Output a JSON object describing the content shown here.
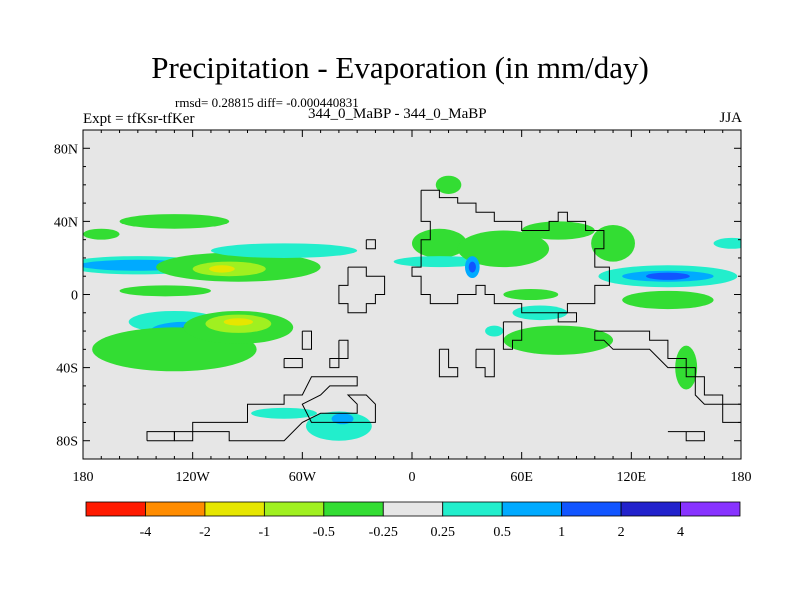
{
  "chart_data": {
    "type": "heatmap",
    "title": "Precipitation - Evaporation (in mm/day)",
    "stats_text": "rmsd= 0.28815 diff= -0.000440831",
    "left_label": "Expt = tfKsr-tfKer",
    "center_label": "344_0_MaBP - 344_0_MaBP",
    "right_label": "JJA",
    "x_ticks": [
      "180",
      "120W",
      "60W",
      "0",
      "60E",
      "120E",
      "180"
    ],
    "x_tick_values": [
      -180,
      -120,
      -60,
      0,
      60,
      120,
      180
    ],
    "y_ticks": [
      "80N",
      "40N",
      "0",
      "40S",
      "80S"
    ],
    "y_tick_values": [
      80,
      40,
      0,
      -40,
      -80
    ],
    "xlim": [
      -180,
      180
    ],
    "ylim": [
      -90,
      90
    ],
    "colorbar": {
      "colors": [
        "#ff1a00",
        "#ff8c00",
        "#e6e600",
        "#a0f020",
        "#33dd33",
        "#e6e6e6",
        "#22eecc",
        "#00aaff",
        "#1155ff",
        "#2222cc",
        "#8833ff"
      ],
      "labels": [
        "-4",
        "-2",
        "-1",
        "-0.5",
        "-0.25",
        "0.25",
        "0.5",
        "1",
        "2",
        "4"
      ]
    },
    "regions": [
      {
        "level": "0.25",
        "color": "#22eecc",
        "lon": -150,
        "lat": 16,
        "rlon": 40,
        "rlat": 5
      },
      {
        "level": "0.5",
        "color": "#00aaff",
        "lon": -150,
        "lat": 16,
        "rlon": 32,
        "rlat": 3
      },
      {
        "level": "-0.25",
        "color": "#33dd33",
        "lon": -130,
        "lat": 40,
        "rlon": 30,
        "rlat": 4
      },
      {
        "level": "-0.25",
        "color": "#33dd33",
        "lon": -95,
        "lat": 15,
        "rlon": 45,
        "rlat": 8
      },
      {
        "level": "-0.5",
        "color": "#a0f020",
        "lon": -100,
        "lat": 14,
        "rlon": 20,
        "rlat": 4
      },
      {
        "level": "-1",
        "color": "#e6e600",
        "lon": -104,
        "lat": 14,
        "rlon": 7,
        "rlat": 2
      },
      {
        "level": "0.25",
        "color": "#22eecc",
        "lon": -70,
        "lat": 24,
        "rlon": 40,
        "rlat": 4
      },
      {
        "level": "0.25",
        "color": "#22eecc",
        "lon": -130,
        "lat": -15,
        "rlon": 25,
        "rlat": 6
      },
      {
        "level": "0.5",
        "color": "#00aaff",
        "lon": -125,
        "lat": -20,
        "rlon": 18,
        "rlat": 5
      },
      {
        "level": "1",
        "color": "#1155ff",
        "lon": -120,
        "lat": -20,
        "rlon": 8,
        "rlat": 3
      },
      {
        "level": "-0.25",
        "color": "#33dd33",
        "lon": -130,
        "lat": -30,
        "rlon": 45,
        "rlat": 12
      },
      {
        "level": "-0.25",
        "color": "#33dd33",
        "lon": -95,
        "lat": -18,
        "rlon": 30,
        "rlat": 9
      },
      {
        "level": "-0.5",
        "color": "#a0f020",
        "lon": -95,
        "lat": -16,
        "rlon": 18,
        "rlat": 5
      },
      {
        "level": "-1",
        "color": "#e6e600",
        "lon": -95,
        "lat": -15,
        "rlon": 8,
        "rlat": 2
      },
      {
        "level": "-0.25",
        "color": "#33dd33",
        "lon": -135,
        "lat": 2,
        "rlon": 25,
        "rlat": 3
      },
      {
        "level": "0.25",
        "color": "#22eecc",
        "lon": -70,
        "lat": -65,
        "rlon": 18,
        "rlat": 3
      },
      {
        "level": "0.25",
        "color": "#22eecc",
        "lon": -40,
        "lat": -72,
        "rlon": 18,
        "rlat": 8
      },
      {
        "level": "0.5",
        "color": "#00aaff",
        "lon": -38,
        "lat": -68,
        "rlon": 6,
        "rlat": 3
      },
      {
        "level": "-0.25",
        "color": "#33dd33",
        "lon": 20,
        "lat": 60,
        "rlon": 7,
        "rlat": 5
      },
      {
        "level": "-0.25",
        "color": "#33dd33",
        "lon": 15,
        "lat": 28,
        "rlon": 15,
        "rlat": 8
      },
      {
        "level": "0.25",
        "color": "#22eecc",
        "lon": 15,
        "lat": 18,
        "rlon": 25,
        "rlat": 3
      },
      {
        "level": "-0.25",
        "color": "#33dd33",
        "lon": 50,
        "lat": 25,
        "rlon": 25,
        "rlat": 10
      },
      {
        "level": "0.5",
        "color": "#00aaff",
        "lon": 33,
        "lat": 15,
        "rlon": 4,
        "rlat": 6
      },
      {
        "level": "1",
        "color": "#1155ff",
        "lon": 33,
        "lat": 15,
        "rlon": 2,
        "rlat": 3
      },
      {
        "level": "-0.25",
        "color": "#33dd33",
        "lon": 80,
        "lat": 35,
        "rlon": 20,
        "rlat": 5
      },
      {
        "level": "-0.25",
        "color": "#33dd33",
        "lon": 110,
        "lat": 28,
        "rlon": 12,
        "rlat": 10
      },
      {
        "level": "0.25",
        "color": "#22eecc",
        "lon": 140,
        "lat": 10,
        "rlon": 38,
        "rlat": 6
      },
      {
        "level": "0.5",
        "color": "#00aaff",
        "lon": 140,
        "lat": 10,
        "rlon": 25,
        "rlat": 3
      },
      {
        "level": "1",
        "color": "#1155ff",
        "lon": 140,
        "lat": 10,
        "rlon": 12,
        "rlat": 2
      },
      {
        "level": "-0.25",
        "color": "#33dd33",
        "lon": 140,
        "lat": -3,
        "rlon": 25,
        "rlat": 5
      },
      {
        "level": "-0.25",
        "color": "#33dd33",
        "lon": 80,
        "lat": -25,
        "rlon": 30,
        "rlat": 8
      },
      {
        "level": "0.25",
        "color": "#22eecc",
        "lon": 70,
        "lat": -10,
        "rlon": 15,
        "rlat": 4
      },
      {
        "level": "-0.25",
        "color": "#33dd33",
        "lon": 150,
        "lat": -40,
        "rlon": 6,
        "rlat": 12
      },
      {
        "level": "0.25",
        "color": "#22eecc",
        "lon": 175,
        "lat": 28,
        "rlon": 10,
        "rlat": 3
      },
      {
        "level": "-0.25",
        "color": "#33dd33",
        "lon": -170,
        "lat": 33,
        "rlon": 10,
        "rlat": 3
      },
      {
        "level": "0.25",
        "color": "#22eecc",
        "lon": 45,
        "lat": -20,
        "rlon": 5,
        "rlat": 3
      },
      {
        "level": "-0.25",
        "color": "#33dd33",
        "lon": 65,
        "lat": 0,
        "rlon": 15,
        "rlat": 3
      }
    ],
    "coastlines": [
      [
        [
          5,
          57
        ],
        [
          15,
          57
        ],
        [
          15,
          53
        ],
        [
          25,
          53
        ],
        [
          25,
          50
        ],
        [
          35,
          50
        ],
        [
          35,
          45
        ],
        [
          45,
          45
        ],
        [
          45,
          40
        ],
        [
          60,
          40
        ],
        [
          60,
          35
        ],
        [
          75,
          35
        ],
        [
          75,
          40
        ],
        [
          80,
          40
        ],
        [
          80,
          45
        ],
        [
          85,
          45
        ],
        [
          85,
          40
        ],
        [
          95,
          40
        ],
        [
          95,
          35
        ],
        [
          105,
          35
        ],
        [
          105,
          25
        ],
        [
          100,
          25
        ],
        [
          100,
          15
        ],
        [
          108,
          15
        ],
        [
          108,
          5
        ],
        [
          100,
          5
        ],
        [
          100,
          -5
        ],
        [
          85,
          -5
        ],
        [
          85,
          -10
        ],
        [
          60,
          -10
        ],
        [
          60,
          -5
        ],
        [
          45,
          -5
        ],
        [
          45,
          0
        ],
        [
          40,
          0
        ],
        [
          40,
          5
        ],
        [
          35,
          5
        ],
        [
          35,
          0
        ],
        [
          25,
          0
        ],
        [
          25,
          -5
        ],
        [
          10,
          -5
        ],
        [
          10,
          0
        ],
        [
          5,
          0
        ],
        [
          5,
          10
        ],
        [
          0,
          10
        ],
        [
          0,
          15
        ],
        [
          5,
          15
        ],
        [
          5,
          30
        ],
        [
          10,
          30
        ],
        [
          10,
          40
        ],
        [
          5,
          40
        ],
        [
          5,
          57
        ]
      ],
      [
        [
          -35,
          15
        ],
        [
          -25,
          15
        ],
        [
          -25,
          10
        ],
        [
          -15,
          10
        ],
        [
          -15,
          0
        ],
        [
          -20,
          0
        ],
        [
          -20,
          -5
        ],
        [
          -25,
          -5
        ],
        [
          -25,
          -10
        ],
        [
          -35,
          -10
        ],
        [
          -35,
          -5
        ],
        [
          -40,
          -5
        ],
        [
          -40,
          5
        ],
        [
          -35,
          5
        ],
        [
          -35,
          15
        ]
      ],
      [
        [
          -25,
          30
        ],
        [
          -20,
          30
        ],
        [
          -20,
          25
        ],
        [
          -25,
          25
        ],
        [
          -25,
          30
        ]
      ],
      [
        [
          -40,
          -25
        ],
        [
          -35,
          -25
        ],
        [
          -35,
          -35
        ],
        [
          -45,
          -35
        ],
        [
          -45,
          -40
        ],
        [
          -40,
          -40
        ],
        [
          -40,
          -25
        ]
      ],
      [
        [
          -60,
          -20
        ],
        [
          -55,
          -20
        ],
        [
          -55,
          -30
        ],
        [
          -60,
          -30
        ],
        [
          -60,
          -20
        ]
      ],
      [
        [
          15,
          -30
        ],
        [
          20,
          -30
        ],
        [
          20,
          -40
        ],
        [
          25,
          -40
        ],
        [
          25,
          -45
        ],
        [
          15,
          -45
        ],
        [
          15,
          -30
        ]
      ],
      [
        [
          35,
          -30
        ],
        [
          45,
          -30
        ],
        [
          45,
          -45
        ],
        [
          40,
          -45
        ],
        [
          40,
          -40
        ],
        [
          35,
          -40
        ],
        [
          35,
          -30
        ]
      ],
      [
        [
          50,
          -15
        ],
        [
          60,
          -15
        ],
        [
          60,
          -25
        ],
        [
          55,
          -25
        ],
        [
          55,
          -30
        ],
        [
          50,
          -30
        ],
        [
          50,
          -15
        ]
      ],
      [
        [
          80,
          -10
        ],
        [
          90,
          -10
        ],
        [
          90,
          -15
        ],
        [
          80,
          -15
        ],
        [
          80,
          -10
        ]
      ],
      [
        [
          100,
          -20
        ],
        [
          130,
          -20
        ],
        [
          130,
          -25
        ],
        [
          140,
          -25
        ],
        [
          140,
          -35
        ],
        [
          150,
          -35
        ],
        [
          150,
          -45
        ],
        [
          160,
          -45
        ],
        [
          160,
          -55
        ],
        [
          170,
          -55
        ],
        [
          170,
          -60
        ],
        [
          180,
          -60
        ],
        [
          180,
          -70
        ],
        [
          170,
          -70
        ],
        [
          170,
          -60
        ],
        [
          160,
          -60
        ],
        [
          155,
          -55
        ],
        [
          155,
          -40
        ],
        [
          140,
          -40
        ],
        [
          130,
          -30
        ],
        [
          110,
          -30
        ],
        [
          105,
          -25
        ],
        [
          100,
          -25
        ],
        [
          100,
          -20
        ]
      ],
      [
        [
          -130,
          -80
        ],
        [
          -120,
          -80
        ],
        [
          -120,
          -70
        ],
        [
          -90,
          -70
        ],
        [
          -90,
          -60
        ],
        [
          -70,
          -60
        ],
        [
          -70,
          -55
        ],
        [
          -60,
          -55
        ],
        [
          -55,
          -45
        ],
        [
          -40,
          -45
        ],
        [
          -30,
          -45
        ],
        [
          -30,
          -50
        ],
        [
          -45,
          -50
        ],
        [
          -50,
          -55
        ],
        [
          -60,
          -60
        ],
        [
          -55,
          -70
        ],
        [
          -40,
          -70
        ],
        [
          -30,
          -70
        ],
        [
          -20,
          -70
        ],
        [
          -20,
          -60
        ],
        [
          -25,
          -55
        ],
        [
          -35,
          -55
        ],
        [
          -30,
          -60
        ],
        [
          -30,
          -65
        ],
        [
          -50,
          -65
        ],
        [
          -60,
          -70
        ],
        [
          -70,
          -80
        ],
        [
          -100,
          -80
        ],
        [
          -100,
          -75
        ],
        [
          -130,
          -75
        ],
        [
          -130,
          -80
        ]
      ],
      [
        [
          -145,
          -80
        ],
        [
          -130,
          -80
        ],
        [
          -130,
          -75
        ],
        [
          -145,
          -75
        ],
        [
          -145,
          -80
        ]
      ],
      [
        [
          -70,
          -35
        ],
        [
          -60,
          -35
        ],
        [
          -60,
          -40
        ],
        [
          -70,
          -40
        ],
        [
          -70,
          -35
        ]
      ],
      [
        [
          140,
          -75
        ],
        [
          150,
          -75
        ],
        [
          150,
          -80
        ],
        [
          160,
          -80
        ],
        [
          160,
          -75
        ],
        [
          150,
          -75
        ]
      ]
    ]
  }
}
